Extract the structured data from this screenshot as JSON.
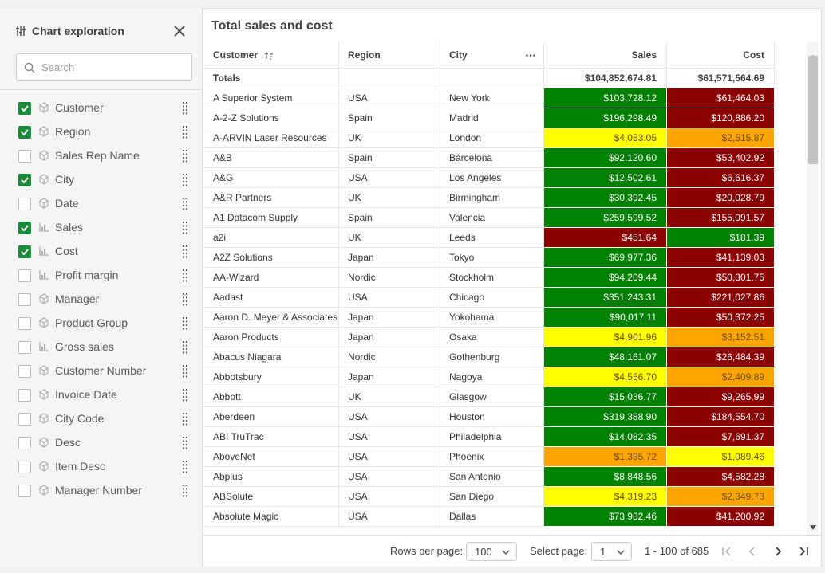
{
  "panel": {
    "title": "Chart exploration",
    "search_placeholder": "Search",
    "fields": [
      {
        "label": "Customer",
        "checked": true,
        "measure": false
      },
      {
        "label": "Region",
        "checked": true,
        "measure": false
      },
      {
        "label": "Sales Rep Name",
        "checked": false,
        "measure": false
      },
      {
        "label": "City",
        "checked": true,
        "measure": false
      },
      {
        "label": "Date",
        "checked": false,
        "measure": false
      },
      {
        "label": "Sales",
        "checked": true,
        "measure": true
      },
      {
        "label": "Cost",
        "checked": true,
        "measure": true
      },
      {
        "label": "Profit margin",
        "checked": false,
        "measure": true
      },
      {
        "label": "Manager",
        "checked": false,
        "measure": false
      },
      {
        "label": "Product Group",
        "checked": false,
        "measure": false
      },
      {
        "label": "Gross sales",
        "checked": false,
        "measure": true
      },
      {
        "label": "Customer Number",
        "checked": false,
        "measure": false
      },
      {
        "label": "Invoice Date",
        "checked": false,
        "measure": false
      },
      {
        "label": "City Code",
        "checked": false,
        "measure": false
      },
      {
        "label": "Desc",
        "checked": false,
        "measure": false
      },
      {
        "label": "Item Desc",
        "checked": false,
        "measure": false
      },
      {
        "label": "Manager Number",
        "checked": false,
        "measure": false
      }
    ]
  },
  "table": {
    "title": "Total sales and cost",
    "columns": [
      "Customer",
      "Region",
      "City",
      "Sales",
      "Cost"
    ],
    "totals": [
      "Totals",
      "$104,852,674.81",
      "$61,571,564.69"
    ],
    "rows": [
      {
        "cells": [
          "A Superior System",
          "USA",
          "New York",
          "$103,728.12",
          "$61,464.03"
        ],
        "colors": [
          "#008000",
          "#8b0000"
        ]
      },
      {
        "cells": [
          "A-2-Z Solutions",
          "Spain",
          "Madrid",
          "$196,298.49",
          "$120,886.20"
        ],
        "colors": [
          "#008000",
          "#8b0000"
        ]
      },
      {
        "cells": [
          "A-ARVIN Laser Resources",
          "UK",
          "London",
          "$4,053.05",
          "$2,515.87"
        ],
        "colors": [
          "#ffff00",
          "#ffa500"
        ]
      },
      {
        "cells": [
          "A&B",
          "Spain",
          "Barcelona",
          "$92,120.60",
          "$53,402.92"
        ],
        "colors": [
          "#008000",
          "#8b0000"
        ]
      },
      {
        "cells": [
          "A&G",
          "USA",
          "Los Angeles",
          "$12,502.61",
          "$6,616.37"
        ],
        "colors": [
          "#008000",
          "#8b0000"
        ]
      },
      {
        "cells": [
          "A&R Partners",
          "UK",
          "Birmingham",
          "$30,392.45",
          "$20,028.79"
        ],
        "colors": [
          "#008000",
          "#8b0000"
        ]
      },
      {
        "cells": [
          "A1 Datacom Supply",
          "Spain",
          "Valencia",
          "$259,599.52",
          "$155,091.57"
        ],
        "colors": [
          "#008000",
          "#8b0000"
        ]
      },
      {
        "cells": [
          "a2i",
          "UK",
          "Leeds",
          "$451.64",
          "$181.39"
        ],
        "colors": [
          "#8b0000",
          "#008000"
        ]
      },
      {
        "cells": [
          "A2Z Solutions",
          "Japan",
          "Tokyo",
          "$69,977.36",
          "$41,139.03"
        ],
        "colors": [
          "#008000",
          "#8b0000"
        ]
      },
      {
        "cells": [
          "AA-Wizard",
          "Nordic",
          "Stockholm",
          "$94,209.44",
          "$50,301.75"
        ],
        "colors": [
          "#008000",
          "#8b0000"
        ]
      },
      {
        "cells": [
          "Aadast",
          "USA",
          "Chicago",
          "$351,243.31",
          "$221,027.86"
        ],
        "colors": [
          "#008000",
          "#8b0000"
        ]
      },
      {
        "cells": [
          "Aaron D. Meyer & Associates",
          "Japan",
          "Yokohama",
          "$90,017.11",
          "$50,372.25"
        ],
        "colors": [
          "#008000",
          "#8b0000"
        ]
      },
      {
        "cells": [
          "Aaron Products",
          "Japan",
          "Osaka",
          "$4,901.96",
          "$3,152.51"
        ],
        "colors": [
          "#ffff00",
          "#ffa500"
        ]
      },
      {
        "cells": [
          "Abacus Niagara",
          "Nordic",
          "Gothenburg",
          "$48,161.07",
          "$26,484.39"
        ],
        "colors": [
          "#008000",
          "#8b0000"
        ]
      },
      {
        "cells": [
          "Abbotsbury",
          "Japan",
          "Nagoya",
          "$4,556.70",
          "$2,409.89"
        ],
        "colors": [
          "#ffff00",
          "#ffa500"
        ]
      },
      {
        "cells": [
          "Abbott",
          "UK",
          "Glasgow",
          "$15,036.77",
          "$9,265.99"
        ],
        "colors": [
          "#008000",
          "#8b0000"
        ]
      },
      {
        "cells": [
          "Aberdeen",
          "USA",
          "Houston",
          "$319,388.90",
          "$184,554.70"
        ],
        "colors": [
          "#008000",
          "#8b0000"
        ]
      },
      {
        "cells": [
          "ABI TruTrac",
          "USA",
          "Philadelphia",
          "$14,082.35",
          "$7,691.37"
        ],
        "colors": [
          "#008000",
          "#8b0000"
        ]
      },
      {
        "cells": [
          "AboveNet",
          "USA",
          "Phoenix",
          "$1,395.72",
          "$1,089.46"
        ],
        "colors": [
          "#ffa500",
          "#ffff00"
        ]
      },
      {
        "cells": [
          "Abplus",
          "USA",
          "San Antonio",
          "$8,848.56",
          "$4,582.28"
        ],
        "colors": [
          "#008000",
          "#8b0000"
        ]
      },
      {
        "cells": [
          "ABSolute",
          "USA",
          "San Diego",
          "$4,319.23",
          "$2,349.73"
        ],
        "colors": [
          "#ffff00",
          "#ffa500"
        ]
      },
      {
        "cells": [
          "Absolute Magic",
          "USA",
          "Dallas",
          "$73,982.46",
          "$41,200.92"
        ],
        "colors": [
          "#008000",
          "#8b0000"
        ]
      }
    ]
  },
  "footer": {
    "rows_per_page_label": "Rows per page:",
    "rows_per_page": "100",
    "select_page_label": "Select page:",
    "page": "1",
    "range": "1 - 100 of 685"
  }
}
